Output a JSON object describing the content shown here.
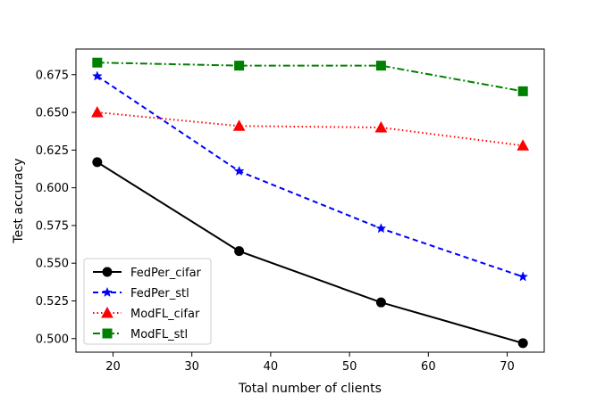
{
  "chart_data": {
    "type": "line",
    "title": "",
    "xlabel": "Total number of clients",
    "ylabel": "Test accuracy",
    "xlim": [
      15.3,
      74.7
    ],
    "ylim": [
      0.491,
      0.692
    ],
    "xticks": [
      20,
      30,
      40,
      50,
      60,
      70
    ],
    "xtick_labels": [
      "20",
      "30",
      "40",
      "50",
      "60",
      "70"
    ],
    "yticks": [
      0.5,
      0.525,
      0.55,
      0.575,
      0.6,
      0.625,
      0.65,
      0.675
    ],
    "ytick_labels": [
      "0.500",
      "0.525",
      "0.550",
      "0.575",
      "0.600",
      "0.625",
      "0.650",
      "0.675"
    ],
    "grid": false,
    "legend_position": "lower-left",
    "x": [
      18,
      36,
      54,
      72
    ],
    "series": [
      {
        "name": "FedPer_cifar",
        "values": [
          0.617,
          0.558,
          0.524,
          0.497
        ],
        "color": "#000000",
        "dash": "solid",
        "marker": "circle"
      },
      {
        "name": "FedPer_stl",
        "values": [
          0.674,
          0.611,
          0.573,
          0.541
        ],
        "color": "#0000ff",
        "dash": "dashed",
        "marker": "star"
      },
      {
        "name": "ModFL_cifar",
        "values": [
          0.65,
          0.641,
          0.64,
          0.628
        ],
        "color": "#ff0000",
        "dash": "dotted",
        "marker": "triangle"
      },
      {
        "name": "ModFL_stl",
        "values": [
          0.683,
          0.681,
          0.681,
          0.664
        ],
        "color": "#008000",
        "dash": "dashdot",
        "marker": "square"
      }
    ]
  }
}
